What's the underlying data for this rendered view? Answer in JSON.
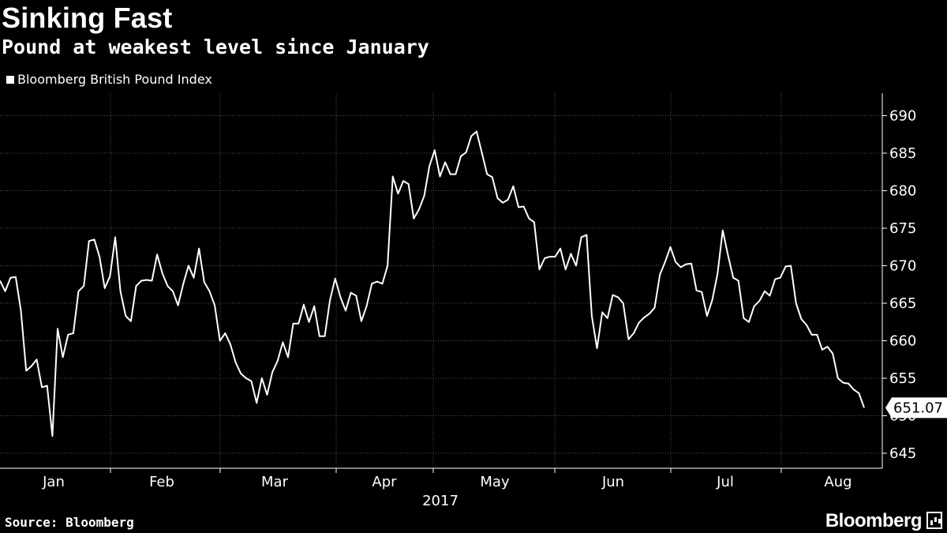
{
  "chart_data": {
    "type": "line",
    "title": "Sinking Fast",
    "subtitle": "Pound at weakest level since January",
    "series": [
      {
        "name": "Bloomberg British Pound Index",
        "values": [
          668.0,
          666.6,
          668.4,
          668.5,
          664.0,
          656.0,
          656.6,
          657.5,
          653.8,
          654.0,
          647.3,
          661.6,
          657.8,
          660.8,
          661.0,
          666.6,
          667.3,
          673.3,
          673.5,
          671.2,
          667.0,
          668.6,
          673.8,
          666.6,
          663.3,
          662.6,
          667.3,
          668.0,
          668.1,
          668.0,
          671.5,
          669.0,
          667.3,
          666.6,
          664.7,
          667.6,
          670.0,
          668.4,
          672.3,
          667.8,
          666.6,
          664.7,
          660.0,
          661.0,
          659.5,
          657.1,
          655.6,
          655.0,
          654.6,
          651.7,
          655.0,
          652.8,
          655.8,
          657.3,
          659.8,
          657.8,
          662.3,
          662.3,
          664.8,
          662.5,
          664.6,
          660.6,
          660.6,
          665.4,
          668.3,
          665.8,
          664.0,
          666.4,
          666.0,
          662.6,
          664.6,
          667.6,
          667.9,
          667.6,
          670.0,
          681.9,
          679.6,
          681.3,
          680.9,
          676.3,
          677.5,
          679.3,
          683.3,
          685.4,
          681.9,
          683.8,
          682.2,
          682.2,
          684.6,
          685.1,
          687.3,
          687.9,
          685.1,
          682.2,
          681.8,
          679.0,
          678.4,
          678.8,
          680.6,
          677.8,
          677.9,
          676.3,
          675.8,
          669.5,
          671.0,
          671.2,
          671.2,
          672.3,
          669.5,
          671.6,
          670.0,
          673.8,
          674.1,
          663.3,
          659.0,
          663.8,
          663.0,
          666.1,
          665.8,
          665.0,
          660.2,
          661.0,
          662.4,
          663.1,
          663.6,
          664.4,
          668.8,
          670.5,
          672.5,
          670.5,
          669.8,
          670.2,
          670.3,
          666.7,
          666.5,
          663.3,
          665.4,
          668.9,
          674.7,
          671.4,
          668.4,
          668.0,
          663.0,
          662.5,
          664.6,
          665.3,
          666.6,
          666.0,
          668.2,
          668.4,
          669.9,
          670.0,
          665.0,
          662.9,
          662.1,
          660.8,
          660.8,
          658.8,
          659.2,
          658.3,
          655.0,
          654.4,
          654.3,
          653.5,
          653.0,
          651.07
        ]
      }
    ],
    "x_labels": [
      "Jan",
      "Feb",
      "Mar",
      "Apr",
      "May",
      "Jun",
      "Jul",
      "Aug"
    ],
    "x_year_label": "2017",
    "ylim": [
      643,
      693
    ],
    "yticks": [
      645,
      650,
      655,
      660,
      665,
      670,
      675,
      680,
      685,
      690
    ],
    "last_value_label": "651.07",
    "grid": "vertical dotted separators + horizontal dotted gridlines",
    "colors": {
      "background": "#000000",
      "line": "#ffffff",
      "grid": "#555555"
    }
  },
  "footer": {
    "source": "Source: Bloomberg",
    "brand": "Bloomberg"
  }
}
